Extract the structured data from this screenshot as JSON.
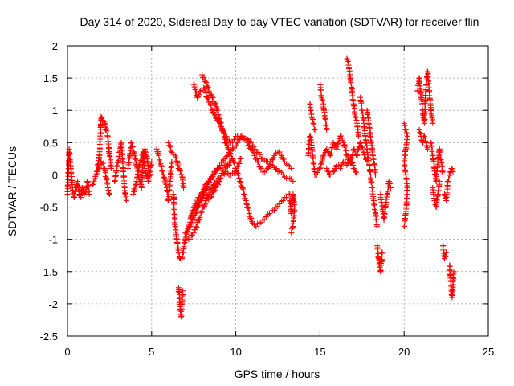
{
  "chart_data": {
    "type": "scatter",
    "title": "Day 314 of 2020, Sidereal Day-to-day VTEC variation (SDTVAR) for receiver flin",
    "xlabel": "GPS time / hours",
    "ylabel": "SDTVAR / TECUs",
    "xlim": [
      0,
      25
    ],
    "ylim": [
      -2.5,
      2
    ],
    "xticks": [
      "0",
      "5",
      "10",
      "15",
      "20",
      "25"
    ],
    "yticks": [
      "-2.5",
      "-2",
      "-1.5",
      "-1",
      "-0.5",
      "0",
      "0.5",
      "1",
      "1.5",
      "2"
    ],
    "grid": true,
    "marker": "+",
    "series_color": "#ff0000",
    "tracks": [
      [
        [
          0.0,
          -0.3
        ],
        [
          0.1,
          0.4
        ],
        [
          0.2,
          0.1
        ],
        [
          0.3,
          -0.2
        ],
        [
          0.4,
          -0.35
        ],
        [
          0.5,
          -0.25
        ],
        [
          0.6,
          -0.1
        ],
        [
          0.7,
          -0.3
        ],
        [
          0.8,
          -0.35
        ],
        [
          0.9,
          -0.2
        ],
        [
          1.0,
          -0.3
        ],
        [
          1.1,
          -0.25
        ],
        [
          1.2,
          -0.1
        ],
        [
          1.3,
          -0.3
        ]
      ],
      [
        [
          1.5,
          -0.15
        ],
        [
          1.7,
          0.0
        ],
        [
          1.9,
          0.3
        ],
        [
          2.0,
          0.9
        ],
        [
          2.2,
          0.8
        ],
        [
          2.4,
          0.6
        ],
        [
          2.5,
          0.3
        ],
        [
          2.6,
          0.1
        ]
      ],
      [
        [
          1.8,
          0.05
        ],
        [
          2.0,
          0.2
        ],
        [
          2.2,
          0.1
        ],
        [
          2.4,
          -0.2
        ],
        [
          2.5,
          -0.3
        ]
      ],
      [
        [
          2.8,
          -0.1
        ],
        [
          3.0,
          0.2
        ],
        [
          3.2,
          0.5
        ],
        [
          3.3,
          0.1
        ],
        [
          3.4,
          -0.2
        ],
        [
          3.5,
          -0.4
        ]
      ],
      [
        [
          3.6,
          0.1
        ],
        [
          3.8,
          0.5
        ],
        [
          4.0,
          0.3
        ],
        [
          4.2,
          0.0
        ],
        [
          4.4,
          -0.2
        ],
        [
          4.5,
          0.35
        ],
        [
          4.6,
          0.1
        ],
        [
          4.8,
          -0.1
        ],
        [
          5.0,
          0.2
        ]
      ],
      [
        [
          3.9,
          -0.3
        ],
        [
          4.1,
          -0.1
        ],
        [
          4.3,
          0.2
        ],
        [
          4.6,
          0.4
        ],
        [
          4.9,
          0.0
        ]
      ],
      [
        [
          5.3,
          0.4
        ],
        [
          5.5,
          0.2
        ],
        [
          5.7,
          0.0
        ],
        [
          5.9,
          -0.2
        ],
        [
          6.0,
          -0.4
        ],
        [
          6.1,
          -0.1
        ],
        [
          6.2,
          0.2
        ]
      ],
      [
        [
          6.0,
          0.5
        ],
        [
          6.2,
          0.35
        ],
        [
          6.4,
          0.3
        ],
        [
          6.6,
          0.1
        ],
        [
          6.8,
          0.0
        ],
        [
          6.9,
          -0.2
        ]
      ],
      [
        [
          6.3,
          -0.3
        ],
        [
          6.4,
          -0.8
        ],
        [
          6.5,
          -1.0
        ],
        [
          6.6,
          -1.2
        ],
        [
          6.7,
          -1.3
        ],
        [
          6.8,
          -1.3
        ],
        [
          6.9,
          -1.15
        ],
        [
          7.0,
          -1.0
        ],
        [
          7.2,
          -0.8
        ],
        [
          7.4,
          -0.6
        ],
        [
          7.6,
          -0.45
        ],
        [
          7.8,
          -0.35
        ],
        [
          8.0,
          -0.25
        ],
        [
          8.2,
          -0.15
        ],
        [
          8.4,
          -0.1
        ]
      ],
      [
        [
          6.6,
          -1.75
        ],
        [
          6.65,
          -1.9
        ],
        [
          6.7,
          -2.1
        ],
        [
          6.75,
          -2.2
        ],
        [
          6.8,
          -2.0
        ],
        [
          6.85,
          -1.8
        ]
      ],
      [
        [
          7.0,
          -0.9
        ],
        [
          7.3,
          -0.8
        ],
        [
          7.6,
          -0.6
        ],
        [
          7.9,
          -0.4
        ],
        [
          8.2,
          -0.2
        ],
        [
          8.5,
          -0.05
        ],
        [
          8.8,
          0.05
        ],
        [
          9.1,
          0.1
        ],
        [
          9.4,
          0.15
        ],
        [
          9.7,
          0.2
        ]
      ],
      [
        [
          7.2,
          -1.0
        ],
        [
          7.5,
          -0.9
        ],
        [
          7.8,
          -0.7
        ],
        [
          8.1,
          -0.5
        ],
        [
          8.4,
          -0.3
        ],
        [
          8.7,
          -0.15
        ],
        [
          9.0,
          -0.05
        ],
        [
          9.3,
          0.05
        ],
        [
          9.6,
          0.15
        ]
      ],
      [
        [
          7.4,
          -0.6
        ],
        [
          7.7,
          -0.5
        ],
        [
          8.0,
          -0.35
        ],
        [
          8.3,
          -0.2
        ],
        [
          8.6,
          0.0
        ],
        [
          8.9,
          0.1
        ],
        [
          9.2,
          0.2
        ],
        [
          9.5,
          0.3
        ],
        [
          9.8,
          0.4
        ],
        [
          10.1,
          0.5
        ],
        [
          10.4,
          0.6
        ],
        [
          10.7,
          0.55
        ],
        [
          11.0,
          0.45
        ],
        [
          11.3,
          0.35
        ],
        [
          11.6,
          0.25
        ],
        [
          11.9,
          0.2
        ],
        [
          12.2,
          0.15
        ],
        [
          12.5,
          0.05
        ],
        [
          12.8,
          0.0
        ],
        [
          13.1,
          -0.05
        ],
        [
          13.4,
          -0.1
        ]
      ],
      [
        [
          7.5,
          1.4
        ],
        [
          7.7,
          1.2
        ],
        [
          7.9,
          1.3
        ],
        [
          8.1,
          1.35
        ],
        [
          8.3,
          1.2
        ],
        [
          8.5,
          1.1
        ],
        [
          8.7,
          0.95
        ],
        [
          8.9,
          0.85
        ],
        [
          9.1,
          0.75
        ],
        [
          9.3,
          0.65
        ],
        [
          9.5,
          0.55
        ],
        [
          9.7,
          0.5
        ],
        [
          9.9,
          0.55
        ],
        [
          10.1,
          0.6
        ],
        [
          10.3,
          0.6
        ],
        [
          10.5,
          0.55
        ],
        [
          10.7,
          0.5
        ],
        [
          10.9,
          0.4
        ],
        [
          11.1,
          0.3
        ],
        [
          11.3,
          0.2
        ],
        [
          11.5,
          0.1
        ],
        [
          11.7,
          0.05
        ],
        [
          11.9,
          0.1
        ],
        [
          12.1,
          0.2
        ],
        [
          12.3,
          0.3
        ],
        [
          12.5,
          0.35
        ],
        [
          12.7,
          0.3
        ],
        [
          12.9,
          0.2
        ],
        [
          13.1,
          0.15
        ],
        [
          13.3,
          0.1
        ]
      ],
      [
        [
          8.0,
          1.55
        ],
        [
          8.2,
          1.45
        ],
        [
          8.4,
          1.3
        ],
        [
          8.6,
          1.2
        ],
        [
          8.8,
          1.1
        ],
        [
          9.0,
          0.9
        ],
        [
          9.2,
          0.7
        ],
        [
          9.4,
          0.5
        ],
        [
          9.6,
          0.35
        ],
        [
          9.8,
          0.25
        ],
        [
          10.0,
          0.1
        ],
        [
          10.2,
          -0.05
        ],
        [
          10.4,
          -0.2
        ],
        [
          10.6,
          -0.4
        ],
        [
          10.8,
          -0.6
        ],
        [
          11.0,
          -0.75
        ],
        [
          11.2,
          -0.8
        ],
        [
          11.4,
          -0.75
        ],
        [
          11.6,
          -0.7
        ],
        [
          11.8,
          -0.65
        ],
        [
          12.0,
          -0.6
        ],
        [
          12.2,
          -0.55
        ],
        [
          12.4,
          -0.5
        ],
        [
          12.6,
          -0.45
        ],
        [
          12.8,
          -0.4
        ],
        [
          13.0,
          -0.35
        ],
        [
          13.2,
          -0.3
        ]
      ],
      [
        [
          13.2,
          -0.4
        ],
        [
          13.3,
          -0.6
        ],
        [
          13.4,
          -0.3
        ],
        [
          13.5,
          -0.5
        ],
        [
          13.4,
          -0.8
        ],
        [
          13.3,
          -0.9
        ]
      ],
      [
        [
          8.2,
          -0.4
        ],
        [
          8.5,
          -0.35
        ],
        [
          8.8,
          -0.2
        ],
        [
          9.1,
          -0.05
        ],
        [
          9.4,
          0.05
        ],
        [
          9.7,
          0.0
        ],
        [
          10.0,
          0.05
        ],
        [
          10.3,
          0.25
        ]
      ],
      [
        [
          14.3,
          0.3
        ],
        [
          14.4,
          0.6
        ],
        [
          14.5,
          0.5
        ],
        [
          14.6,
          0.2
        ],
        [
          14.7,
          0.0
        ]
      ],
      [
        [
          14.4,
          1.1
        ],
        [
          14.5,
          0.9
        ],
        [
          14.6,
          0.8
        ],
        [
          14.7,
          0.7
        ]
      ],
      [
        [
          14.8,
          0.0
        ],
        [
          15.0,
          0.1
        ],
        [
          15.2,
          0.3
        ],
        [
          15.4,
          0.4
        ],
        [
          15.6,
          0.3
        ],
        [
          15.8,
          0.5
        ],
        [
          16.0,
          0.4
        ],
        [
          16.2,
          0.6
        ],
        [
          16.4,
          0.5
        ],
        [
          16.6,
          0.3
        ],
        [
          16.8,
          0.2
        ],
        [
          17.0,
          0.4
        ],
        [
          17.2,
          0.3
        ],
        [
          17.4,
          0.5
        ],
        [
          17.6,
          0.35
        ],
        [
          17.8,
          0.2
        ]
      ],
      [
        [
          15.0,
          1.4
        ],
        [
          15.1,
          1.2
        ],
        [
          15.2,
          1.1
        ],
        [
          15.3,
          0.9
        ],
        [
          15.4,
          0.7
        ]
      ],
      [
        [
          15.4,
          0.1
        ],
        [
          15.6,
          0.0
        ],
        [
          15.8,
          0.05
        ],
        [
          16.0,
          0.15
        ],
        [
          16.2,
          0.1
        ],
        [
          16.4,
          0.2
        ],
        [
          16.6,
          0.15
        ],
        [
          16.8,
          0.25
        ],
        [
          17.0,
          0.1
        ],
        [
          17.2,
          0.0
        ]
      ],
      [
        [
          16.6,
          1.8
        ],
        [
          16.7,
          1.7
        ],
        [
          16.8,
          1.5
        ],
        [
          16.9,
          1.3
        ],
        [
          17.0,
          1.1
        ],
        [
          17.1,
          0.9
        ],
        [
          17.2,
          0.8
        ],
        [
          17.3,
          0.6
        ]
      ],
      [
        [
          17.4,
          1.2
        ],
        [
          17.5,
          1.0
        ],
        [
          17.6,
          0.8
        ],
        [
          17.7,
          0.6
        ],
        [
          17.8,
          0.4
        ],
        [
          17.9,
          0.2
        ],
        [
          18.0,
          0.0
        ],
        [
          18.1,
          -0.2
        ],
        [
          18.2,
          -0.4
        ],
        [
          18.3,
          -0.6
        ],
        [
          18.4,
          -0.8
        ]
      ],
      [
        [
          17.8,
          1.0
        ],
        [
          17.9,
          0.8
        ],
        [
          18.0,
          0.6
        ],
        [
          18.1,
          0.4
        ],
        [
          18.2,
          0.2
        ],
        [
          18.3,
          0.0
        ]
      ],
      [
        [
          18.4,
          -1.1
        ],
        [
          18.5,
          -1.3
        ],
        [
          18.6,
          -1.5
        ],
        [
          18.7,
          -1.2
        ]
      ],
      [
        [
          18.6,
          -0.3
        ],
        [
          18.7,
          -0.5
        ],
        [
          18.8,
          -0.7
        ],
        [
          18.9,
          -0.5
        ],
        [
          19.0,
          -0.3
        ],
        [
          19.1,
          -0.1
        ],
        [
          19.2,
          -0.2
        ]
      ],
      [
        [
          20.0,
          0.8
        ],
        [
          20.1,
          0.7
        ],
        [
          20.2,
          0.6
        ],
        [
          20.1,
          0.4
        ],
        [
          20.0,
          0.2
        ],
        [
          20.1,
          0.0
        ],
        [
          20.2,
          -0.2
        ],
        [
          20.1,
          -0.6
        ],
        [
          20.0,
          -0.8
        ]
      ],
      [
        [
          20.8,
          1.3
        ],
        [
          20.9,
          1.5
        ],
        [
          21.0,
          1.2
        ],
        [
          21.1,
          1.0
        ],
        [
          21.2,
          0.8
        ],
        [
          21.3,
          1.4
        ],
        [
          21.4,
          1.6
        ],
        [
          21.5,
          1.3
        ],
        [
          21.6,
          1.0
        ],
        [
          21.7,
          0.8
        ]
      ],
      [
        [
          20.9,
          0.7
        ],
        [
          21.0,
          0.6
        ],
        [
          21.1,
          0.5
        ],
        [
          21.2,
          0.6
        ],
        [
          21.3,
          0.5
        ],
        [
          21.4,
          0.4
        ]
      ],
      [
        [
          21.6,
          0.5
        ],
        [
          21.7,
          0.3
        ],
        [
          21.8,
          0.1
        ],
        [
          21.9,
          -0.1
        ],
        [
          22.0,
          0.2
        ],
        [
          22.1,
          0.4
        ],
        [
          22.2,
          0.2
        ],
        [
          22.3,
          0.0
        ]
      ],
      [
        [
          21.7,
          -0.2
        ],
        [
          21.8,
          -0.4
        ],
        [
          21.9,
          -0.5
        ],
        [
          22.0,
          -0.3
        ],
        [
          22.1,
          -0.1
        ]
      ],
      [
        [
          22.4,
          -0.3
        ],
        [
          22.5,
          -0.4
        ],
        [
          22.6,
          -0.1
        ],
        [
          22.7,
          0.0
        ],
        [
          22.8,
          0.1
        ],
        [
          22.9,
          0.05
        ]
      ],
      [
        [
          22.3,
          -1.1
        ],
        [
          22.4,
          -1.3
        ],
        [
          22.5,
          -1.2
        ]
      ],
      [
        [
          22.7,
          -1.4
        ],
        [
          22.75,
          -1.6
        ],
        [
          22.8,
          -1.8
        ],
        [
          22.85,
          -1.9
        ],
        [
          22.9,
          -1.7
        ],
        [
          22.95,
          -1.5
        ]
      ]
    ]
  }
}
